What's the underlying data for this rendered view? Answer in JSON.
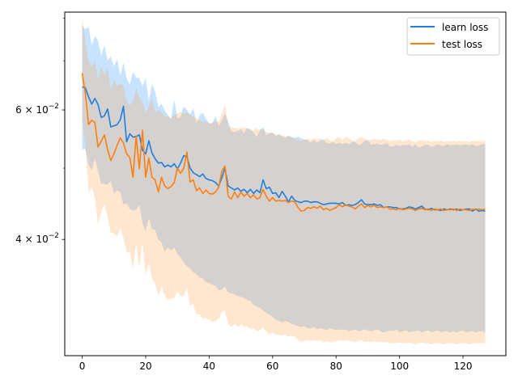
{
  "chart_data": {
    "type": "line",
    "title": "",
    "xlabel": "",
    "ylabel": "",
    "y_scale": "log",
    "xlim": [
      -5.5,
      133.5
    ],
    "ylim": [
      0.0278,
      0.0815
    ],
    "x_ticks": [
      0,
      20,
      40,
      60,
      80,
      100,
      120
    ],
    "y_major_ticks": [
      {
        "value": 0.04,
        "base": "4 × 10",
        "exp": "−2"
      },
      {
        "value": 0.06,
        "base": "6 × 10",
        "exp": "−2"
      }
    ],
    "y_minor_ticks": [
      0.05,
      0.07,
      0.08
    ],
    "grid": false,
    "legend_position": "top-right",
    "x_points": [
      0,
      1,
      2,
      3,
      4,
      5,
      6,
      7,
      8,
      9,
      10,
      11,
      12,
      13,
      14,
      15,
      16,
      17,
      18,
      19,
      20,
      21,
      22,
      23,
      24,
      25,
      26,
      27,
      28,
      29,
      30,
      31,
      32,
      33,
      34,
      35,
      36,
      37,
      38,
      39,
      40,
      41,
      42,
      43,
      44,
      45,
      46,
      47,
      48,
      49,
      50,
      51,
      52,
      53,
      54,
      55,
      56,
      57,
      58,
      59,
      60,
      61,
      62,
      63,
      64,
      65,
      66,
      67,
      68,
      69,
      70,
      71,
      72,
      73,
      74,
      75,
      76,
      77,
      78,
      79,
      80,
      81,
      82,
      83,
      84,
      85,
      86,
      87,
      88,
      89,
      90,
      91,
      92,
      93,
      94,
      95,
      96,
      97,
      98,
      99,
      100,
      101,
      102,
      103,
      104,
      105,
      106,
      107,
      108,
      109,
      110,
      111,
      112,
      113,
      114,
      115,
      116,
      117,
      118,
      119,
      120,
      121,
      122,
      123,
      124,
      125,
      126,
      127
    ],
    "series": [
      {
        "name": "learn loss",
        "color": "#1f7fe0",
        "band_color": "#1f8fff",
        "values": [
          0.0645,
          0.0643,
          0.0625,
          0.0611,
          0.0622,
          0.061,
          0.0586,
          0.0589,
          0.0602,
          0.0569,
          0.0571,
          0.0573,
          0.0582,
          0.0607,
          0.0543,
          0.0557,
          0.0551,
          0.0552,
          0.0555,
          0.0529,
          0.0523,
          0.0545,
          0.0524,
          0.0515,
          0.0508,
          0.0509,
          0.0502,
          0.0505,
          0.0502,
          0.0507,
          0.0499,
          0.0508,
          0.052,
          0.0518,
          0.05,
          0.0493,
          0.049,
          0.0487,
          0.0491,
          0.0484,
          0.0482,
          0.0481,
          0.0478,
          0.0473,
          0.0485,
          0.05,
          0.0473,
          0.047,
          0.0467,
          0.047,
          0.0465,
          0.0468,
          0.0463,
          0.0468,
          0.0462,
          0.0467,
          0.0463,
          0.0482,
          0.0469,
          0.0471,
          0.0462,
          0.0463,
          0.0456,
          0.0465,
          0.0458,
          0.045,
          0.0458,
          0.0452,
          0.045,
          0.0449,
          0.0451,
          0.0451,
          0.0449,
          0.045,
          0.045,
          0.0448,
          0.0446,
          0.0447,
          0.0448,
          0.0448,
          0.0448,
          0.0447,
          0.0449,
          0.0445,
          0.0446,
          0.0445,
          0.0446,
          0.0449,
          0.0453,
          0.0447,
          0.0446,
          0.0446,
          0.0447,
          0.0445,
          0.0446,
          0.0442,
          0.0443,
          0.0443,
          0.0442,
          0.0442,
          0.044,
          0.044,
          0.0441,
          0.0443,
          0.0442,
          0.044,
          0.0442,
          0.0444,
          0.044,
          0.0439,
          0.0441,
          0.0439,
          0.0439,
          0.0438,
          0.044,
          0.0439,
          0.044,
          0.0439,
          0.044,
          0.0438,
          0.0439,
          0.044,
          0.044,
          0.0437,
          0.044,
          0.0437,
          0.0438,
          0.0437
        ],
        "band_upper": [
          0.0782,
          0.0772,
          0.0778,
          0.0735,
          0.0756,
          0.0745,
          0.0711,
          0.0735,
          0.07,
          0.071,
          0.0688,
          0.0703,
          0.0669,
          0.0695,
          0.0662,
          0.065,
          0.0676,
          0.0664,
          0.0663,
          0.0646,
          0.0663,
          0.0618,
          0.0651,
          0.0635,
          0.0606,
          0.0612,
          0.0599,
          0.059,
          0.0583,
          0.062,
          0.0584,
          0.0587,
          0.0607,
          0.06,
          0.0591,
          0.0604,
          0.0575,
          0.059,
          0.0595,
          0.0584,
          0.0575,
          0.0575,
          0.0589,
          0.057,
          0.0581,
          0.0593,
          0.0579,
          0.0561,
          0.056,
          0.0562,
          0.0565,
          0.0558,
          0.0567,
          0.0565,
          0.0559,
          0.0551,
          0.0564,
          0.0568,
          0.0554,
          0.0559,
          0.0559,
          0.0553,
          0.0557,
          0.0553,
          0.0549,
          0.0554,
          0.0551,
          0.055,
          0.0552,
          0.0549,
          0.0547,
          0.0546,
          0.0541,
          0.0546,
          0.0541,
          0.0545,
          0.0547,
          0.0541,
          0.054,
          0.0543,
          0.0539,
          0.0542,
          0.0539,
          0.0542,
          0.0539,
          0.0543,
          0.0543,
          0.0538,
          0.0539,
          0.0545,
          0.0546,
          0.0538,
          0.0539,
          0.054,
          0.0538,
          0.0539,
          0.0541,
          0.0535,
          0.0535,
          0.0538,
          0.0536,
          0.0538,
          0.0537,
          0.0539,
          0.0535,
          0.0539,
          0.0533,
          0.0535,
          0.0538,
          0.0538,
          0.0534,
          0.0536,
          0.0539,
          0.0537,
          0.0536,
          0.0539,
          0.0537,
          0.0538,
          0.0539,
          0.0537,
          0.0538,
          0.0538,
          0.0537,
          0.0539,
          0.0536,
          0.0537,
          0.0539,
          0.0539
        ],
        "band_lower": [
          0.053,
          0.0531,
          0.0506,
          0.0497,
          0.0515,
          0.0496,
          0.0476,
          0.0476,
          0.0475,
          0.048,
          0.0462,
          0.0466,
          0.0464,
          0.0446,
          0.0448,
          0.044,
          0.0438,
          0.0439,
          0.0446,
          0.0421,
          0.0411,
          0.0428,
          0.0413,
          0.0412,
          0.04,
          0.0396,
          0.0385,
          0.039,
          0.0386,
          0.039,
          0.0382,
          0.0378,
          0.0372,
          0.0368,
          0.0365,
          0.0361,
          0.0359,
          0.0355,
          0.0354,
          0.035,
          0.0349,
          0.0347,
          0.0346,
          0.0341,
          0.0342,
          0.0345,
          0.0339,
          0.0338,
          0.0337,
          0.0335,
          0.0334,
          0.0333,
          0.0331,
          0.033,
          0.0326,
          0.0324,
          0.0323,
          0.032,
          0.0318,
          0.0316,
          0.0314,
          0.0311,
          0.031,
          0.0308,
          0.031,
          0.0309,
          0.0307,
          0.0306,
          0.0305,
          0.0304,
          0.0305,
          0.0303,
          0.0303,
          0.0304,
          0.0302,
          0.0303,
          0.0302,
          0.0301,
          0.0303,
          0.0302,
          0.0301,
          0.0302,
          0.0301,
          0.0302,
          0.03,
          0.0301,
          0.0302,
          0.03,
          0.0301,
          0.0302,
          0.0301,
          0.03,
          0.0301,
          0.0302,
          0.03,
          0.0299,
          0.03,
          0.0301,
          0.03,
          0.0302,
          0.0299,
          0.03,
          0.0301,
          0.0299,
          0.03,
          0.03,
          0.0301,
          0.0299,
          0.03,
          0.0301,
          0.0299,
          0.03,
          0.0301,
          0.0299,
          0.03,
          0.03,
          0.0299,
          0.03,
          0.0299,
          0.03,
          0.0301,
          0.0299,
          0.03,
          0.03,
          0.0299,
          0.03,
          0.03,
          0.0299
        ]
      },
      {
        "name": "test loss",
        "color": "#ff7f0e",
        "band_color": "#ff9a3c",
        "values": [
          0.0673,
          0.0632,
          0.0573,
          0.0581,
          0.0577,
          0.0534,
          0.0544,
          0.0555,
          0.053,
          0.0512,
          0.0523,
          0.0537,
          0.055,
          0.0541,
          0.0523,
          0.0517,
          0.0486,
          0.0553,
          0.0499,
          0.0563,
          0.0486,
          0.0516,
          0.0486,
          0.0482,
          0.0464,
          0.0486,
          0.0473,
          0.0469,
          0.0472,
          0.0478,
          0.05,
          0.0492,
          0.05,
          0.0526,
          0.0479,
          0.0482,
          0.0466,
          0.047,
          0.0462,
          0.0467,
          0.0462,
          0.0461,
          0.0464,
          0.0471,
          0.0495,
          0.0503,
          0.0458,
          0.0454,
          0.0464,
          0.0456,
          0.0464,
          0.0458,
          0.0462,
          0.0456,
          0.046,
          0.0454,
          0.0456,
          0.0468,
          0.0458,
          0.0451,
          0.0456,
          0.0451,
          0.0452,
          0.0451,
          0.0452,
          0.0449,
          0.0451,
          0.045,
          0.0442,
          0.0437,
          0.0438,
          0.0442,
          0.0441,
          0.0443,
          0.0441,
          0.0444,
          0.0439,
          0.0441,
          0.0438,
          0.044,
          0.0442,
          0.0446,
          0.0443,
          0.0446,
          0.0444,
          0.0443,
          0.044,
          0.0444,
          0.0447,
          0.0442,
          0.0445,
          0.0443,
          0.0445,
          0.0442,
          0.0443,
          0.0442,
          0.0443,
          0.044,
          0.044,
          0.0439,
          0.0441,
          0.0439,
          0.044,
          0.0441,
          0.044,
          0.0438,
          0.044,
          0.0441,
          0.0439,
          0.044,
          0.0438,
          0.044,
          0.0439,
          0.044,
          0.0438,
          0.0439,
          0.0439,
          0.044,
          0.0438,
          0.044,
          0.0439,
          0.0439,
          0.0438,
          0.044,
          0.0439,
          0.044,
          0.0439,
          0.044
        ],
        "band_upper": [
          0.08,
          0.0745,
          0.07,
          0.0686,
          0.07,
          0.066,
          0.0688,
          0.0668,
          0.0684,
          0.064,
          0.0658,
          0.0647,
          0.0652,
          0.0648,
          0.0617,
          0.0609,
          0.0617,
          0.0642,
          0.0624,
          0.0616,
          0.0595,
          0.0607,
          0.0623,
          0.0595,
          0.0599,
          0.0596,
          0.0587,
          0.0588,
          0.0585,
          0.059,
          0.0593,
          0.0596,
          0.0593,
          0.0595,
          0.0592,
          0.0587,
          0.0585,
          0.0581,
          0.0578,
          0.0578,
          0.0576,
          0.0576,
          0.058,
          0.0578,
          0.0592,
          0.061,
          0.0569,
          0.0568,
          0.0567,
          0.0566,
          0.0567,
          0.0568,
          0.0566,
          0.0564,
          0.0563,
          0.0567,
          0.0562,
          0.0566,
          0.056,
          0.0557,
          0.0558,
          0.0556,
          0.0554,
          0.0554,
          0.0553,
          0.0552,
          0.0551,
          0.0548,
          0.0546,
          0.0545,
          0.0546,
          0.0549,
          0.0546,
          0.0549,
          0.0547,
          0.0549,
          0.0546,
          0.055,
          0.0546,
          0.0544,
          0.0549,
          0.0551,
          0.0546,
          0.0551,
          0.0549,
          0.0545,
          0.0544,
          0.0549,
          0.0552,
          0.0548,
          0.0546,
          0.0546,
          0.0548,
          0.0547,
          0.0546,
          0.0548,
          0.0546,
          0.0544,
          0.0546,
          0.0545,
          0.0547,
          0.0544,
          0.0545,
          0.0547,
          0.0544,
          0.0543,
          0.0545,
          0.0546,
          0.0544,
          0.0545,
          0.0543,
          0.0545,
          0.0544,
          0.0545,
          0.0543,
          0.0544,
          0.0544,
          0.0545,
          0.0543,
          0.0545,
          0.0544,
          0.0544,
          0.0543,
          0.0545,
          0.0544,
          0.0545,
          0.0544,
          0.0545
        ],
        "band_lower": [
          0.0582,
          0.0537,
          0.0464,
          0.047,
          0.0455,
          0.042,
          0.0436,
          0.0447,
          0.043,
          0.0408,
          0.0408,
          0.0404,
          0.0415,
          0.0402,
          0.0384,
          0.0385,
          0.0365,
          0.0395,
          0.0366,
          0.0396,
          0.0359,
          0.0371,
          0.0354,
          0.0349,
          0.0335,
          0.0346,
          0.0336,
          0.0331,
          0.0332,
          0.0333,
          0.034,
          0.0335,
          0.0335,
          0.0344,
          0.0325,
          0.0327,
          0.0316,
          0.0317,
          0.0312,
          0.0313,
          0.0311,
          0.0309,
          0.031,
          0.0312,
          0.0319,
          0.032,
          0.0307,
          0.0304,
          0.0307,
          0.0304,
          0.0307,
          0.0304,
          0.0305,
          0.0302,
          0.0303,
          0.03,
          0.0301,
          0.0304,
          0.03,
          0.0297,
          0.0299,
          0.0297,
          0.0297,
          0.0296,
          0.0297,
          0.0295,
          0.0296,
          0.0295,
          0.0292,
          0.029,
          0.0291,
          0.0292,
          0.0291,
          0.0292,
          0.0291,
          0.0292,
          0.029,
          0.0291,
          0.029,
          0.029,
          0.0291,
          0.0292,
          0.0291,
          0.0292,
          0.0291,
          0.0291,
          0.029,
          0.0291,
          0.0292,
          0.029,
          0.0291,
          0.029,
          0.0291,
          0.029,
          0.029,
          0.029,
          0.029,
          0.0289,
          0.0289,
          0.0289,
          0.029,
          0.0289,
          0.0289,
          0.029,
          0.0289,
          0.0288,
          0.0289,
          0.029,
          0.0289,
          0.0289,
          0.0288,
          0.0289,
          0.0289,
          0.0289,
          0.0288,
          0.0289,
          0.0289,
          0.0289,
          0.0288,
          0.0289,
          0.0289,
          0.0289,
          0.0288,
          0.0289,
          0.0289,
          0.0289,
          0.0289,
          0.0289
        ]
      }
    ]
  }
}
